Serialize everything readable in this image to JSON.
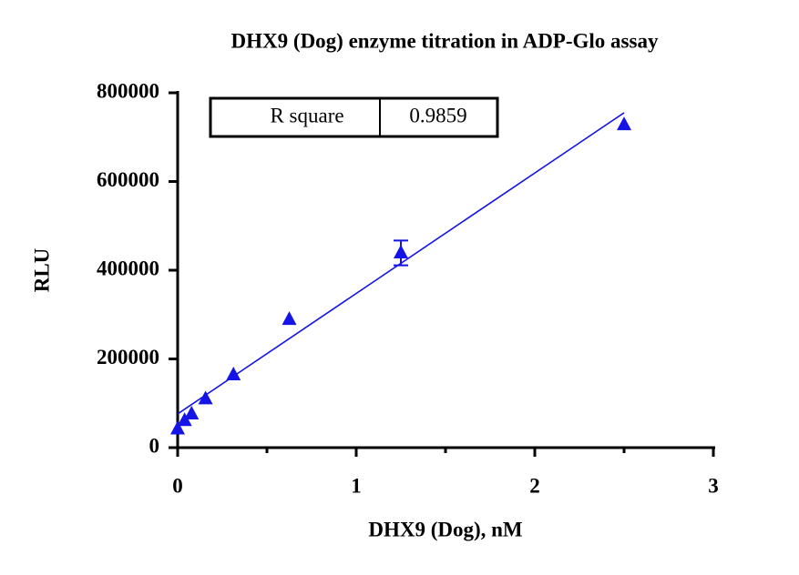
{
  "chart_data": {
    "type": "scatter",
    "title": "DHX9 (Dog) enzyme titration in ADP-Glo assay",
    "x_label": "DHX9 (Dog), nM",
    "y_label": "RLU",
    "x": [
      0,
      0.039,
      0.078,
      0.156,
      0.3125,
      0.625,
      1.25,
      2.5
    ],
    "values": [
      42000,
      61000,
      76000,
      110000,
      164000,
      289000,
      439000,
      728000
    ],
    "errors": [
      null,
      null,
      null,
      null,
      null,
      null,
      28000,
      null
    ],
    "color": "#1414e6",
    "fit": {
      "x": [
        0,
        2.5
      ],
      "values": [
        76000,
        755000
      ]
    },
    "annotation": {
      "label": "R square",
      "value": "0.9859"
    },
    "xlim": [
      0,
      3
    ],
    "xticks": [
      0,
      1,
      2,
      3
    ],
    "xminorticks": [
      0.5,
      1.5,
      2.5
    ],
    "ylim": [
      0,
      800000
    ],
    "yticks": [
      0,
      200000,
      400000,
      600000,
      800000
    ]
  }
}
